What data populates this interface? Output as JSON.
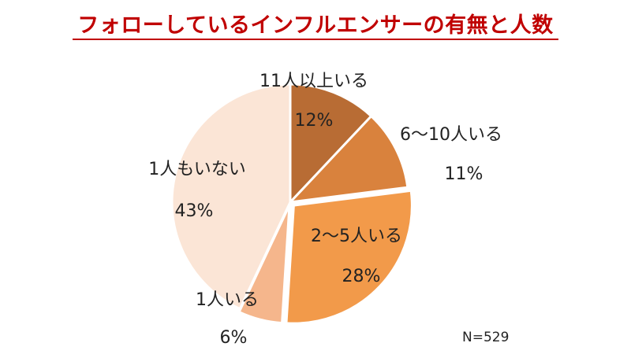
{
  "chart_data": {
    "type": "pie",
    "title": "フォローしているインフルエンサーの有無と人数",
    "note": "N=529",
    "slices": [
      {
        "label": "11人以上いる",
        "value": 12,
        "value_label": "12%",
        "color": "#b86c34"
      },
      {
        "label": "6～10人いる",
        "value": 11,
        "value_label": "11%",
        "color": "#d9823d"
      },
      {
        "label": "2～5人いる",
        "value": 28,
        "value_label": "28%",
        "color": "#f29a4a"
      },
      {
        "label": "1人いる",
        "value": 6,
        "value_label": "6%",
        "color": "#f5b68c"
      },
      {
        "label": "1人もいない",
        "value": 43,
        "value_label": "43%",
        "color": "#fbe5d6"
      }
    ],
    "start_angle": "12 o'clock",
    "direction": "clockwise",
    "legend": "none"
  }
}
